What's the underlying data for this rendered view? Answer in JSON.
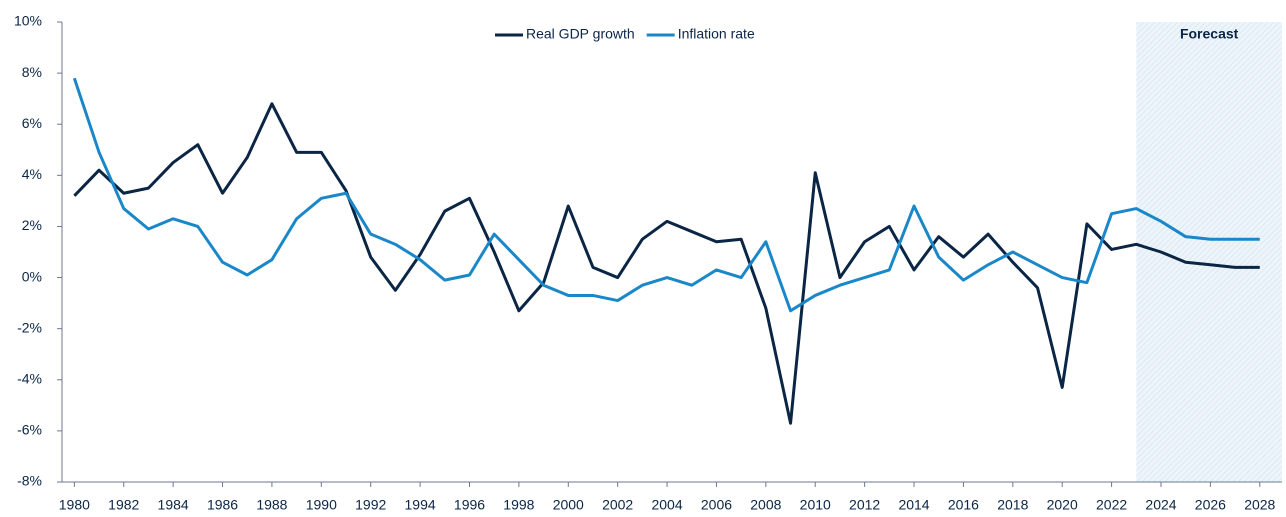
{
  "chart_data": {
    "type": "line",
    "x": [
      1980,
      1981,
      1982,
      1983,
      1984,
      1985,
      1986,
      1987,
      1988,
      1989,
      1990,
      1991,
      1992,
      1993,
      1994,
      1995,
      1996,
      1997,
      1998,
      1999,
      2000,
      2001,
      2002,
      2003,
      2004,
      2005,
      2006,
      2007,
      2008,
      2009,
      2010,
      2011,
      2012,
      2013,
      2014,
      2015,
      2016,
      2017,
      2018,
      2019,
      2020,
      2021,
      2022,
      2023,
      2024,
      2025,
      2026,
      2027,
      2028
    ],
    "series": [
      {
        "name": "Real GDP growth",
        "color": "#0b2545",
        "values": [
          3.2,
          4.2,
          3.3,
          3.5,
          4.5,
          5.2,
          3.3,
          4.7,
          6.8,
          4.9,
          4.9,
          3.4,
          0.8,
          -0.5,
          0.9,
          2.6,
          3.1,
          1.0,
          -1.3,
          -0.2,
          2.8,
          0.4,
          0.0,
          1.5,
          2.2,
          1.8,
          1.4,
          1.5,
          -1.2,
          -5.7,
          4.1,
          0.0,
          1.4,
          2.0,
          0.3,
          1.6,
          0.8,
          1.7,
          0.6,
          -0.4,
          -4.3,
          2.1,
          1.1,
          1.3,
          1.0,
          0.6,
          0.5,
          0.4,
          0.4
        ]
      },
      {
        "name": "Inflation rate",
        "color": "#1a87c9",
        "values": [
          7.8,
          4.9,
          2.7,
          1.9,
          2.3,
          2.0,
          0.6,
          0.1,
          0.7,
          2.3,
          3.1,
          3.3,
          1.7,
          1.3,
          0.7,
          -0.1,
          0.1,
          1.7,
          0.7,
          -0.3,
          -0.7,
          -0.7,
          -0.9,
          -0.3,
          0.0,
          -0.3,
          0.3,
          0.0,
          1.4,
          -1.3,
          -0.7,
          -0.3,
          0.0,
          0.3,
          2.8,
          0.8,
          -0.1,
          0.5,
          1.0,
          0.5,
          0.0,
          -0.2,
          2.5,
          2.7,
          2.2,
          1.6,
          1.5,
          1.5,
          1.5
        ]
      }
    ],
    "xlim": [
      1979.5,
      2028.9
    ],
    "xticks": [
      1980,
      1982,
      1984,
      1986,
      1988,
      1990,
      1992,
      1994,
      1996,
      1998,
      2000,
      2002,
      2004,
      2006,
      2008,
      2010,
      2012,
      2014,
      2016,
      2018,
      2020,
      2022,
      2024,
      2026,
      2028
    ],
    "ylim": [
      -8,
      10
    ],
    "yticks": [
      {
        "value": -8,
        "label": "-8%"
      },
      {
        "value": -6,
        "label": "-6%"
      },
      {
        "value": -4,
        "label": "-4%"
      },
      {
        "value": -2,
        "label": "-2%"
      },
      {
        "value": 0,
        "label": "0%"
      },
      {
        "value": 2,
        "label": "2%"
      },
      {
        "value": 4,
        "label": "4%"
      },
      {
        "value": 6,
        "label": "6%"
      },
      {
        "value": 8,
        "label": "8%"
      },
      {
        "value": 10,
        "label": "10%"
      }
    ],
    "forecast_start": 2023,
    "forecast_label": "Forecast",
    "legend": "top"
  }
}
